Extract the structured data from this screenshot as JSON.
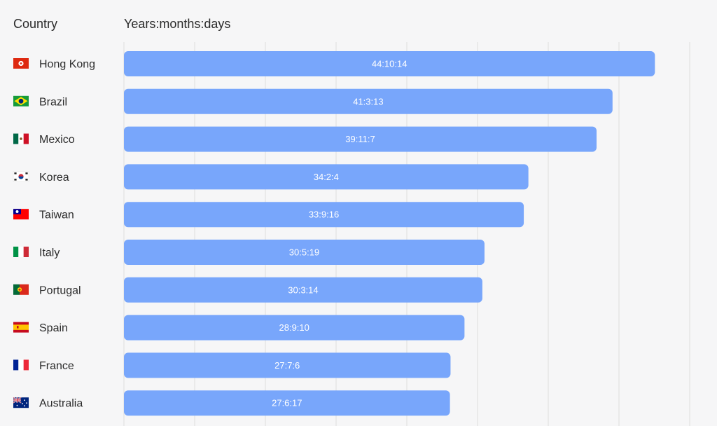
{
  "header": {
    "country_label": "Country",
    "unit_label": "Years:months:days"
  },
  "chart_data": {
    "type": "bar",
    "orientation": "horizontal",
    "categories": [
      "Hong Kong",
      "Brazil",
      "Mexico",
      "Korea",
      "Taiwan",
      "Italy",
      "Portugal",
      "Spain",
      "France",
      "Australia"
    ],
    "flags": [
      "hong-kong-flag-icon",
      "brazil-flag-icon",
      "mexico-flag-icon",
      "korea-flag-icon",
      "taiwan-flag-icon",
      "italy-flag-icon",
      "portugal-flag-icon",
      "spain-flag-icon",
      "france-flag-icon",
      "australia-flag-icon"
    ],
    "values": [
      44.87,
      41.29,
      39.94,
      34.18,
      33.79,
      30.47,
      30.29,
      28.78,
      27.6,
      27.55
    ],
    "labels": [
      "44:10:14",
      "41:3:13",
      "39:11:7",
      "34:2:4",
      "33:9:16",
      "30:5:19",
      "30:3:14",
      "28:9:10",
      "27:7:6",
      "27:6:17"
    ],
    "xlim": [
      0,
      48
    ],
    "grid": true,
    "bar_color": "#78a6fb"
  }
}
